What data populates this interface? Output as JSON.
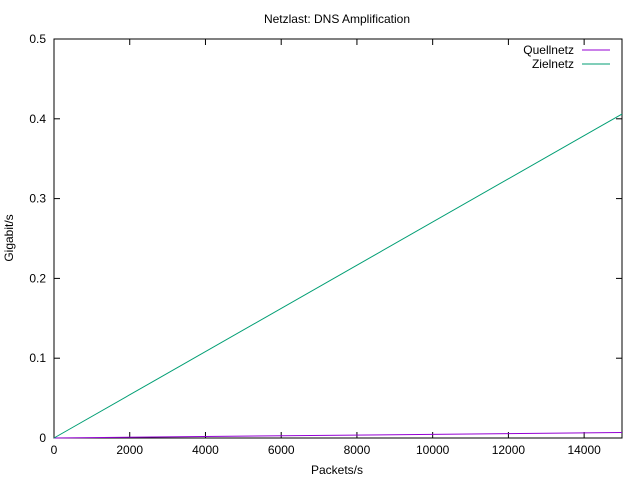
{
  "chart_data": {
    "type": "line",
    "title": "Netzlast: DNS Amplification",
    "xlabel": "Packets/s",
    "ylabel": "Gigabit/s",
    "xlim": [
      0,
      15000
    ],
    "ylim": [
      0,
      0.5
    ],
    "x_ticks": [
      "0",
      "2000",
      "4000",
      "6000",
      "8000",
      "10000",
      "12000",
      "14000"
    ],
    "y_ticks": [
      "0",
      "0.1",
      "0.2",
      "0.3",
      "0.4",
      "0.5"
    ],
    "grid": false,
    "legend_position": "top-right",
    "series": [
      {
        "name": "Quellnetz",
        "color": "#9400d3",
        "x": [
          0,
          15000
        ],
        "y": [
          0,
          0.0069
        ]
      },
      {
        "name": "Zielnetz",
        "color": "#009e73",
        "x": [
          0,
          15000
        ],
        "y": [
          0,
          0.406
        ]
      }
    ]
  }
}
